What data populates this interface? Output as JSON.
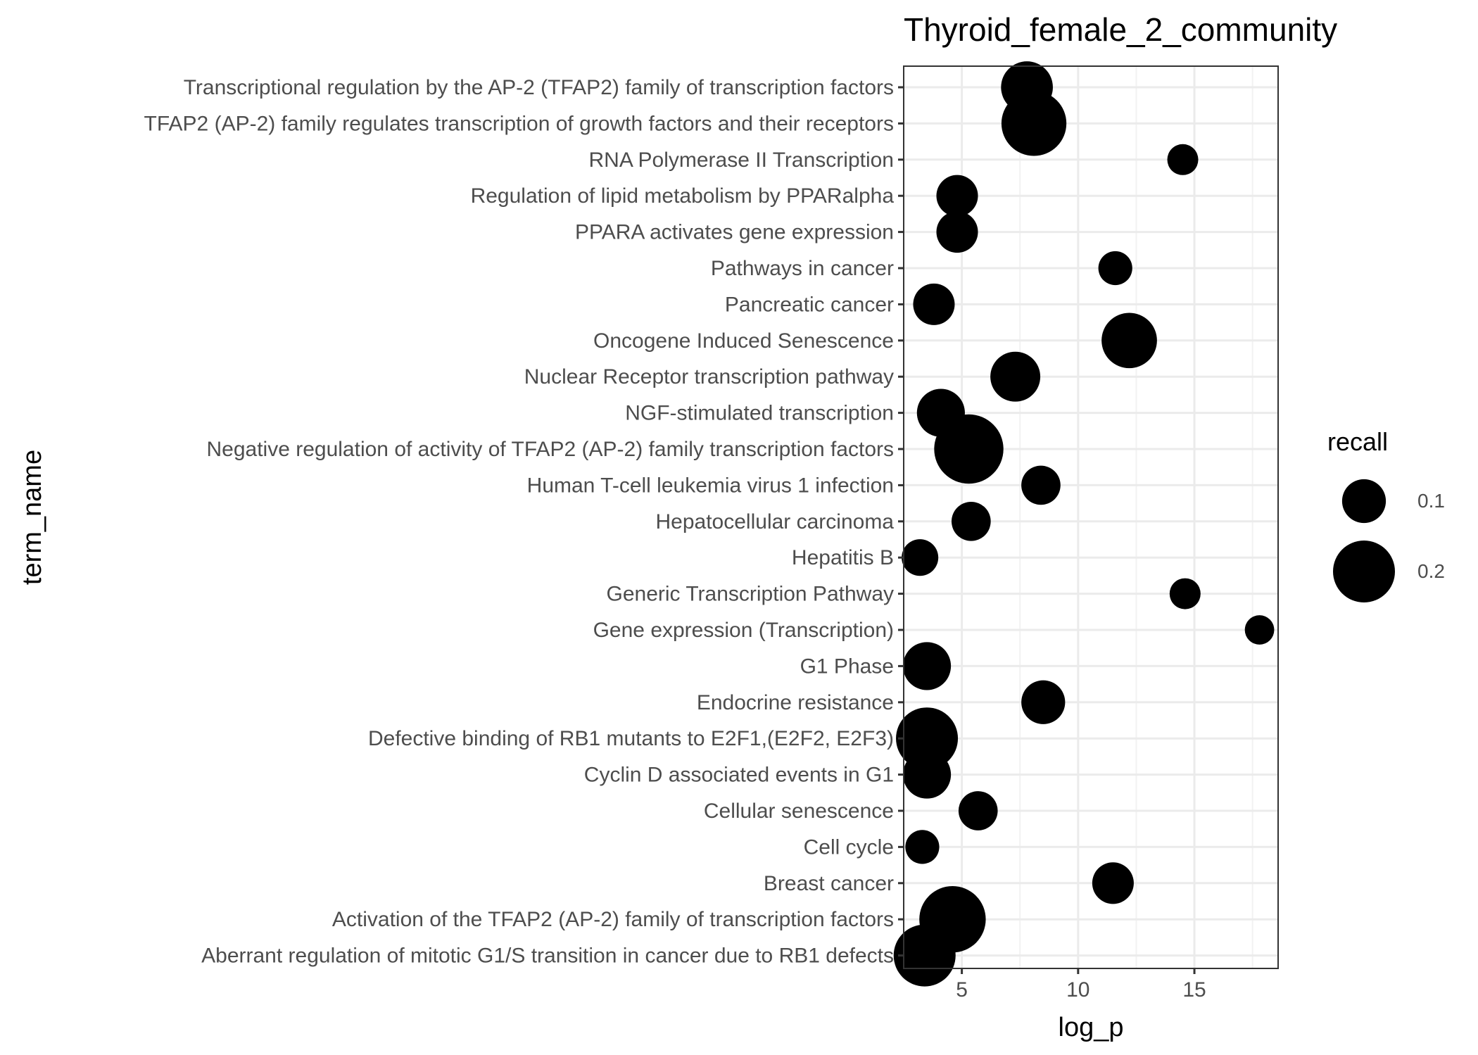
{
  "chart_data": {
    "type": "scatter",
    "title": "Thyroid_female_2_community",
    "xlabel": "log_p",
    "ylabel": "term_name",
    "xlim": [
      2.5,
      18.6
    ],
    "xticks": [
      5,
      10,
      15
    ],
    "grid": true,
    "legend": {
      "title": "recall",
      "position": "right",
      "entries": [
        {
          "label": "0.1",
          "value": 0.1
        },
        {
          "label": "0.2",
          "value": 0.2
        }
      ]
    },
    "points": [
      {
        "term": "Transcriptional regulation by the AP-2 (TFAP2) family of transcription factors",
        "log_p": 7.8,
        "recall": 0.14
      },
      {
        "term": "TFAP2 (AP-2) family regulates transcription of growth factors and their receptors",
        "log_p": 8.1,
        "recall": 0.22
      },
      {
        "term": "RNA Polymerase II Transcription",
        "log_p": 14.5,
        "recall": 0.05
      },
      {
        "term": "Regulation of lipid metabolism by PPARalpha",
        "log_p": 4.8,
        "recall": 0.09
      },
      {
        "term": "PPARA activates gene expression",
        "log_p": 4.8,
        "recall": 0.09
      },
      {
        "term": "Pathways in cancer",
        "log_p": 11.6,
        "recall": 0.06
      },
      {
        "term": "Pancreatic cancer",
        "log_p": 3.8,
        "recall": 0.09
      },
      {
        "term": "Oncogene Induced Senescence",
        "log_p": 12.2,
        "recall": 0.16
      },
      {
        "term": "Nuclear Receptor transcription pathway",
        "log_p": 7.3,
        "recall": 0.13
      },
      {
        "term": "NGF-stimulated transcription",
        "log_p": 4.1,
        "recall": 0.12
      },
      {
        "term": "Negative regulation of activity of TFAP2 (AP-2) family transcription factors",
        "log_p": 5.3,
        "recall": 0.25
      },
      {
        "term": "Human T-cell leukemia virus 1 infection",
        "log_p": 8.4,
        "recall": 0.08
      },
      {
        "term": "Hepatocellular carcinoma",
        "log_p": 5.4,
        "recall": 0.08
      },
      {
        "term": "Hepatitis B",
        "log_p": 3.2,
        "recall": 0.07
      },
      {
        "term": "Generic Transcription Pathway",
        "log_p": 14.6,
        "recall": 0.05
      },
      {
        "term": "Gene expression (Transcription)",
        "log_p": 17.8,
        "recall": 0.045
      },
      {
        "term": "G1 Phase",
        "log_p": 3.5,
        "recall": 0.12
      },
      {
        "term": "Endocrine resistance",
        "log_p": 8.5,
        "recall": 0.1
      },
      {
        "term": "Defective binding of RB1 mutants to E2F1,(E2F2, E2F3)",
        "log_p": 3.5,
        "recall": 0.2
      },
      {
        "term": "Cyclin D associated events in G1",
        "log_p": 3.5,
        "recall": 0.12
      },
      {
        "term": "Cellular senescence",
        "log_p": 5.7,
        "recall": 0.08
      },
      {
        "term": "Cell cycle",
        "log_p": 3.3,
        "recall": 0.06
      },
      {
        "term": "Breast cancer",
        "log_p": 11.5,
        "recall": 0.09
      },
      {
        "term": "Activation of the TFAP2 (AP-2) family of transcription factors",
        "log_p": 4.6,
        "recall": 0.23
      },
      {
        "term": "Aberrant regulation of mitotic G1/S transition in cancer due to RB1 defects",
        "log_p": 3.4,
        "recall": 0.2
      }
    ]
  }
}
